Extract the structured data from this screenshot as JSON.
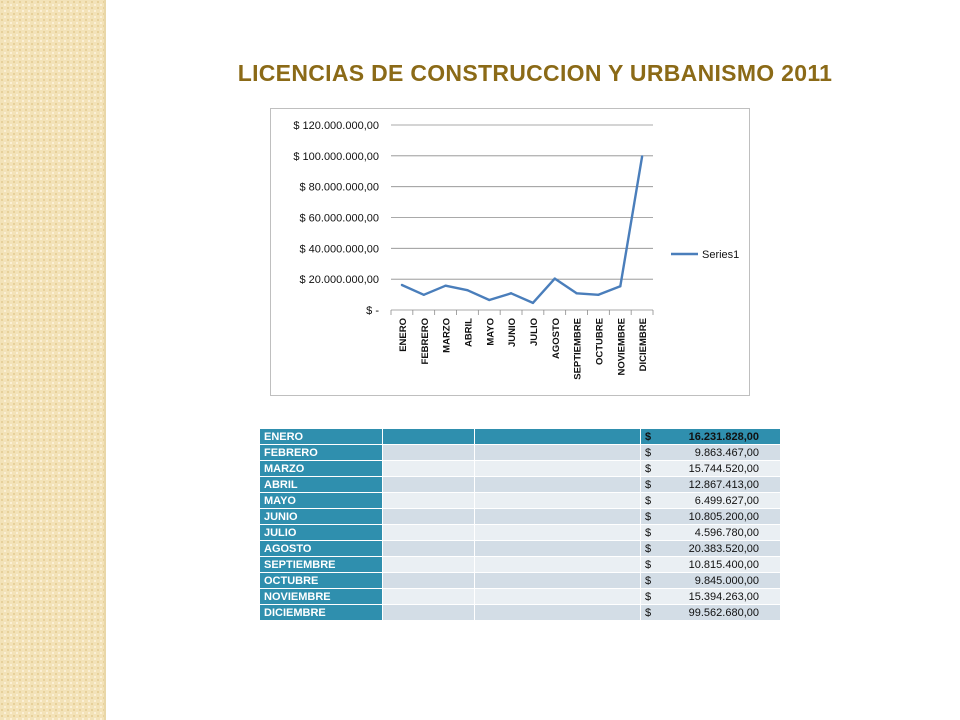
{
  "title": "LICENCIAS DE CONSTRUCCION Y URBANISMO 2011",
  "colors": {
    "title": "#8b6a17",
    "series": "#4a7ebb",
    "table_header": "#2f8fae"
  },
  "chart_data": {
    "type": "line",
    "categories": [
      "ENERO",
      "FEBRERO",
      "MARZO",
      "ABRIL",
      "MAYO",
      "JUNIO",
      "JULIO",
      "AGOSTO",
      "SEPTIEMBRE",
      "OCTUBRE",
      "NOVIEMBRE",
      "DICIEMBRE"
    ],
    "series": [
      {
        "name": "Series1",
        "values": [
          16231828,
          9863467,
          15744520,
          12867413,
          6499627,
          10805200,
          4596780,
          20383520,
          10815400,
          9845000,
          15394263,
          99562680
        ]
      }
    ],
    "ylim": [
      0,
      120000000
    ],
    "yticks": [
      0,
      20000000,
      40000000,
      60000000,
      80000000,
      100000000,
      120000000
    ],
    "ytick_labels": [
      "$ -",
      "$ 20.000.000,00",
      "$ 40.000.000,00",
      "$ 60.000.000,00",
      "$ 80.000.000,00",
      "$ 100.000.000,00",
      "$ 120.000.000,00"
    ],
    "grid": true,
    "legend": "right"
  },
  "table": {
    "currency": "$",
    "rows": [
      {
        "month": "ENERO",
        "amount": "16.231.828,00"
      },
      {
        "month": "FEBRERO",
        "amount": "9.863.467,00"
      },
      {
        "month": "MARZO",
        "amount": "15.744.520,00"
      },
      {
        "month": "ABRIL",
        "amount": "12.867.413,00"
      },
      {
        "month": "MAYO",
        "amount": "6.499.627,00"
      },
      {
        "month": "JUNIO",
        "amount": "10.805.200,00"
      },
      {
        "month": "JULIO",
        "amount": "4.596.780,00"
      },
      {
        "month": "AGOSTO",
        "amount": "20.383.520,00"
      },
      {
        "month": "SEPTIEMBRE",
        "amount": "10.815.400,00"
      },
      {
        "month": "OCTUBRE",
        "amount": "9.845.000,00"
      },
      {
        "month": "NOVIEMBRE",
        "amount": "15.394.263,00"
      },
      {
        "month": "DICIEMBRE",
        "amount": "99.562.680,00"
      }
    ]
  }
}
